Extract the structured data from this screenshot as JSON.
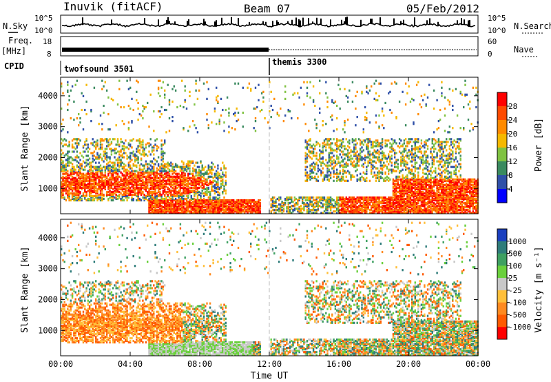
{
  "header": {
    "station": "Inuvik (fitACF)",
    "beam": "Beam 07",
    "date": "05/Feb/2012"
  },
  "nsky_label": "N.Sky",
  "nsearch_label": "N.Search",
  "freq_label": "Freq.",
  "mhz_label": "[MHz]",
  "nave_label": "Nave",
  "cpid_label": "CPID",
  "nsky_ticks": [
    "10^5",
    "10^0"
  ],
  "nsearch_ticks": [
    "10^5",
    "10^0"
  ],
  "freq_ticks": [
    "18",
    "8"
  ],
  "nave_ticks": [
    "60",
    "0"
  ],
  "cpid_segments": [
    {
      "name": "twofsound 3501",
      "start": "00:00"
    },
    {
      "name": "themis 3300",
      "start": "12:00"
    }
  ],
  "chart_data": [
    {
      "type": "heatmap",
      "panel": "power",
      "xlabel": "",
      "ylabel": "Slant Range [km]",
      "x_ticks": [
        "00:00",
        "04:00",
        "08:00",
        "12:00",
        "16:00",
        "20:00",
        "00:00"
      ],
      "y_ticks": [
        "1000",
        "2000",
        "3000",
        "4000"
      ],
      "xlim_hours": [
        0,
        24
      ],
      "ylim_km": [
        180,
        4600
      ],
      "colorbar_label": "Power [dB]",
      "colorbar_ticks": [
        "28",
        "24",
        "20",
        "16",
        "12",
        "8",
        "4"
      ],
      "colorbar_colors": [
        "#ff0000",
        "#ff4a00",
        "#ff8a00",
        "#f5b800",
        "#7fc241",
        "#3a8a5f",
        "#2f50a8",
        "#0000ff"
      ]
    },
    {
      "type": "heatmap",
      "panel": "velocity",
      "xlabel": "Time UT",
      "ylabel": "Slant Range [km]",
      "x_ticks": [
        "00:00",
        "04:00",
        "08:00",
        "12:00",
        "16:00",
        "20:00",
        "00:00"
      ],
      "y_ticks": [
        "1000",
        "2000",
        "3000",
        "4000"
      ],
      "xlim_hours": [
        0,
        24
      ],
      "ylim_km": [
        180,
        4600
      ],
      "colorbar_label": "Velocity [m s⁻¹]",
      "colorbar_ticks": [
        "1000",
        "500",
        "100",
        "25",
        "-25",
        "-100",
        "-500",
        "-1000"
      ],
      "colorbar_colors": [
        "#1a3fbf",
        "#2e7c7a",
        "#3ea061",
        "#6ad03c",
        "#c8c8c8",
        "#ffbf3a",
        "#ff8a20",
        "#ff5a00",
        "#ff0000"
      ]
    }
  ]
}
